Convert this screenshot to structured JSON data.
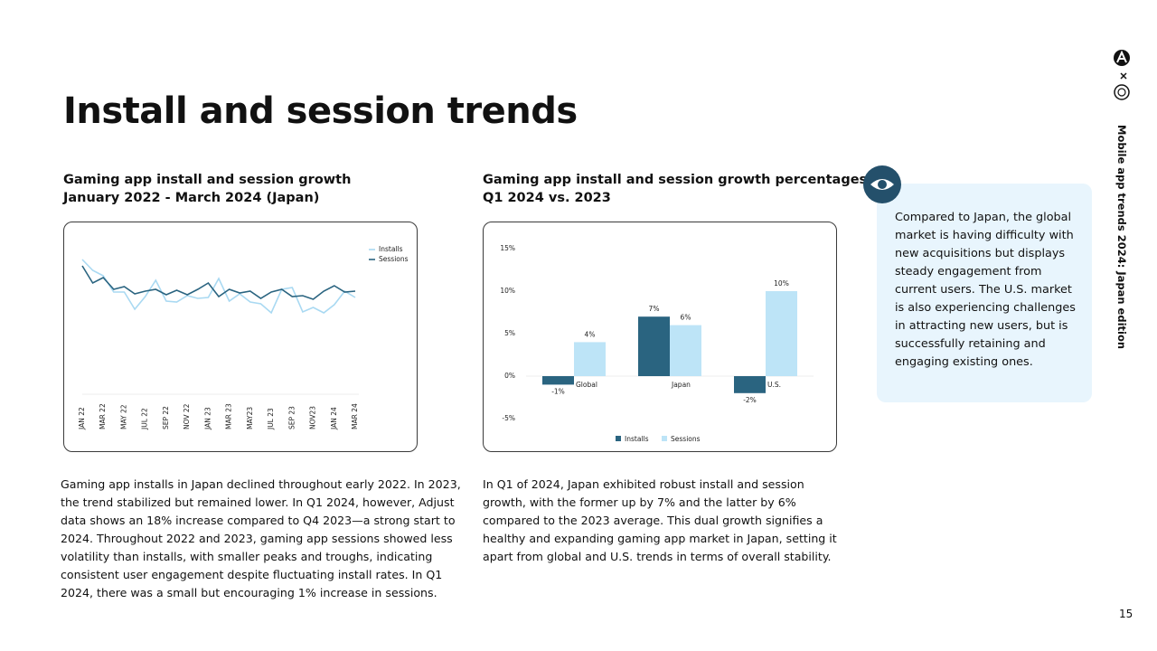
{
  "page_title": "Install and session trends",
  "side_label": "Mobile app trends 2024: Japan edition",
  "page_number": "15",
  "left_heading": [
    "Gaming app install and session growth",
    "January 2022 - March 2024 (Japan)"
  ],
  "right_heading": [
    "Gaming app install and session growth percentages",
    "Q1 2024 vs. 2023"
  ],
  "left_text": "Gaming app installs in Japan declined throughout early 2022. In 2023, the trend stabilized but remained lower. In Q1 2024, however, Adjust data shows an 18% increase compared to Q4 2023—a strong start to 2024. Throughout 2022 and 2023, gaming app sessions showed less volatility than installs, with smaller peaks and troughs, indicating consistent user engagement despite fluctuating install rates. In Q1 2024, there was a small but encouraging 1% increase in sessions.",
  "right_text": "In Q1 of 2024, Japan exhibited robust install and session growth, with the former up by 7% and the latter by 6% compared to the 2023 average. This dual growth signifies a healthy and expanding gaming app market in Japan, setting it apart from global and U.S. trends in terms of overall stability.",
  "callout": "Compared to Japan, the global market is having difficulty with new acquisitions but displays steady engagement from current users. The U.S. market is also experiencing challenges in attracting new users, but is successfully retaining and engaging existing ones.",
  "chart_data": [
    {
      "type": "line",
      "categories": [
        "JAN 22",
        null,
        "MAR 22",
        null,
        "MAY 22",
        null,
        "JUL 22",
        null,
        "SEP 22",
        null,
        "NOV 22",
        null,
        "JAN 23",
        null,
        "MAR 23",
        null,
        "MAY23",
        null,
        "JUL 23",
        null,
        "SEP 23",
        null,
        "NOV23",
        null,
        "JAN 24",
        null,
        "MAR 24"
      ],
      "series": [
        {
          "name": "Installs",
          "color": "#a9d9f2",
          "values": [
            149,
            137,
            131,
            113,
            113,
            94,
            108,
            126,
            103,
            102,
            109,
            106,
            107,
            128,
            103,
            111,
            102,
            100,
            90,
            116,
            118,
            91,
            96,
            90,
            99,
            114,
            107
          ]
        },
        {
          "name": "Sessions",
          "color": "#2a6480",
          "values": [
            142,
            123,
            129,
            116,
            119,
            111,
            114,
            116,
            110,
            115,
            110,
            116,
            123,
            108,
            116,
            112,
            114,
            106,
            113,
            116,
            108,
            109,
            105,
            114,
            120,
            113,
            114
          ]
        }
      ]
    },
    {
      "type": "bar",
      "categories": [
        "Global",
        "Japan",
        "U.S."
      ],
      "series": [
        {
          "name": "Installs",
          "color": "#2a6480",
          "values": [
            -1,
            7,
            -2
          ],
          "value_labels": [
            "-1%",
            "7%",
            "-2%"
          ]
        },
        {
          "name": "Sessions",
          "color": "#bde4f7",
          "values": [
            4,
            6,
            10
          ],
          "value_labels": [
            "4%",
            "6%",
            "10%"
          ]
        }
      ],
      "ylim": [
        -5,
        15
      ],
      "yticks": [
        {
          "value": -5,
          "label": "-5%"
        },
        {
          "value": 0,
          "label": "0%"
        },
        {
          "value": 5,
          "label": "5%"
        },
        {
          "value": 10,
          "label": "10%"
        },
        {
          "value": 15,
          "label": "15%"
        }
      ]
    }
  ]
}
